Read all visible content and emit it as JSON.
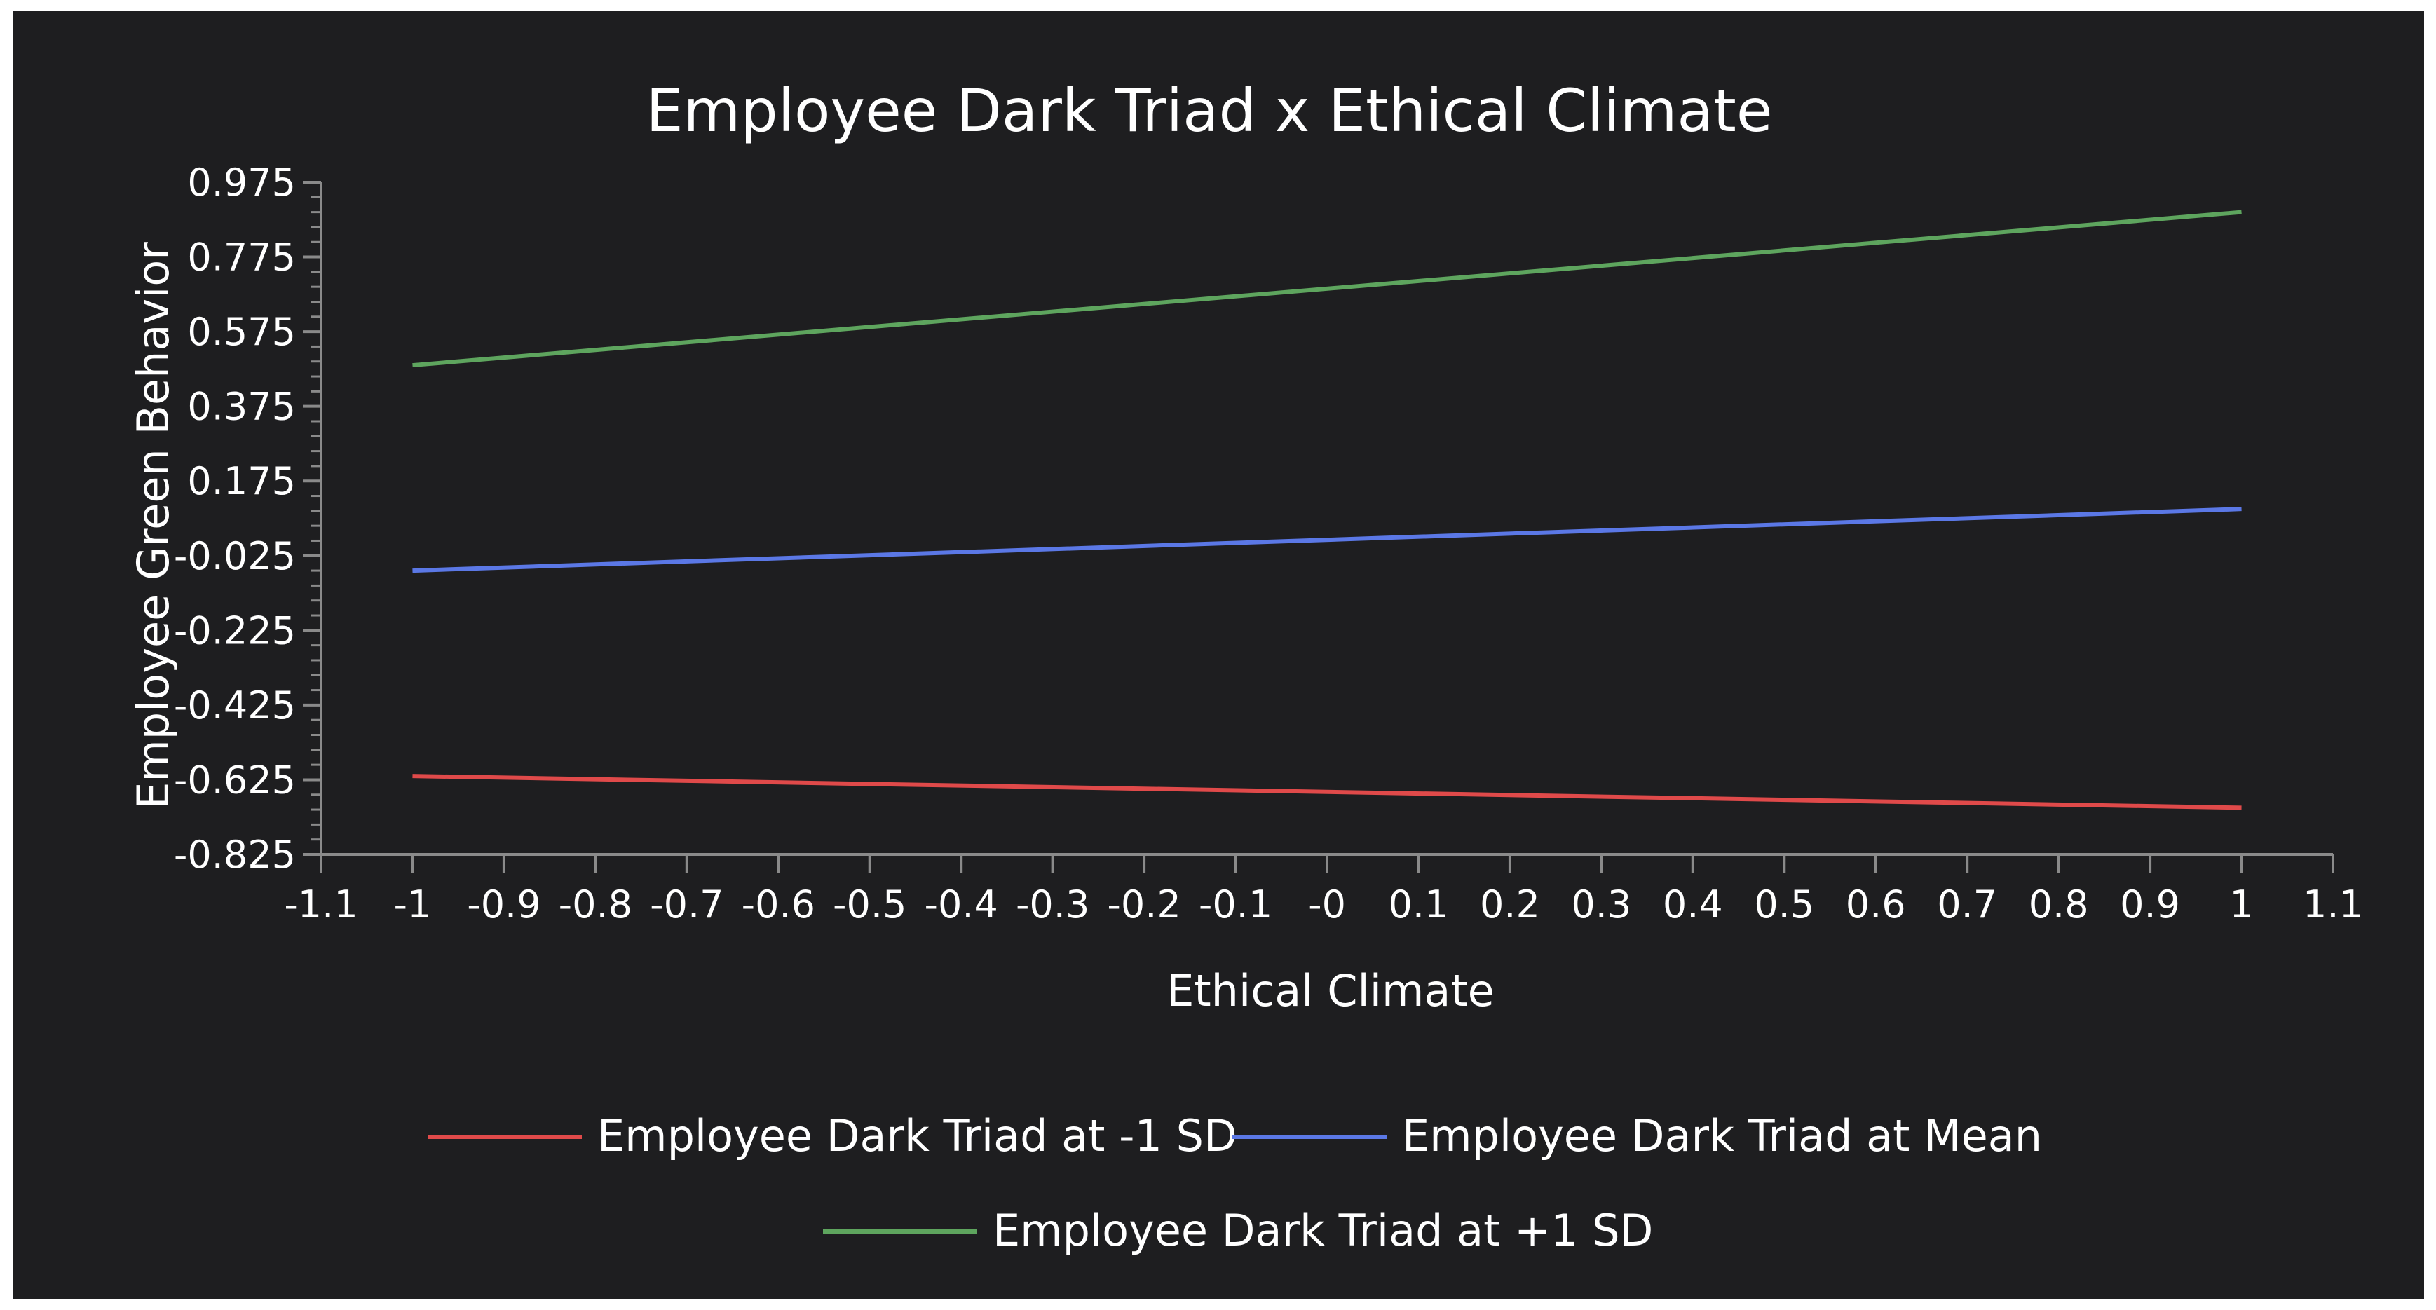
{
  "colors": {
    "background": "#1e1e20",
    "axis": "#8a8a8a",
    "text": "#ffffff"
  },
  "chart_data": {
    "type": "line",
    "title": "Employee Dark Triad x Ethical Climate",
    "xlabel": "Ethical Climate",
    "ylabel": "Employee Green Behavior",
    "xlim": [
      -1.1,
      1.1
    ],
    "ylim": [
      -0.825,
      0.975
    ],
    "x_ticks": [
      "-1.1",
      "-1",
      "-0.9",
      "-0.8",
      "-0.7",
      "-0.6",
      "-0.5",
      "-0.4",
      "-0.3",
      "-0.2",
      "-0.1",
      "-0",
      "0.1",
      "0.2",
      "0.3",
      "0.4",
      "0.5",
      "0.6",
      "0.7",
      "0.8",
      "0.9",
      "1",
      "1.1"
    ],
    "y_ticks": [
      "0.975",
      "0.775",
      "0.575",
      "0.375",
      "0.175",
      "-0.025",
      "-0.225",
      "-0.425",
      "-0.625",
      "-0.825"
    ],
    "grid": false,
    "legend_position": "bottom",
    "series": [
      {
        "name": "Employee Dark Triad at -1 SD",
        "color": "#e04a4a",
        "x": [
          -1,
          1
        ],
        "values": [
          -0.615,
          -0.7
        ]
      },
      {
        "name": "Employee Dark Triad at Mean",
        "color": "#5b78e6",
        "x": [
          -1,
          1
        ],
        "values": [
          -0.065,
          0.1
        ]
      },
      {
        "name": "Employee Dark Triad at +1 SD",
        "color": "#5ea55e",
        "x": [
          -1,
          1
        ],
        "values": [
          0.485,
          0.895
        ]
      }
    ]
  }
}
